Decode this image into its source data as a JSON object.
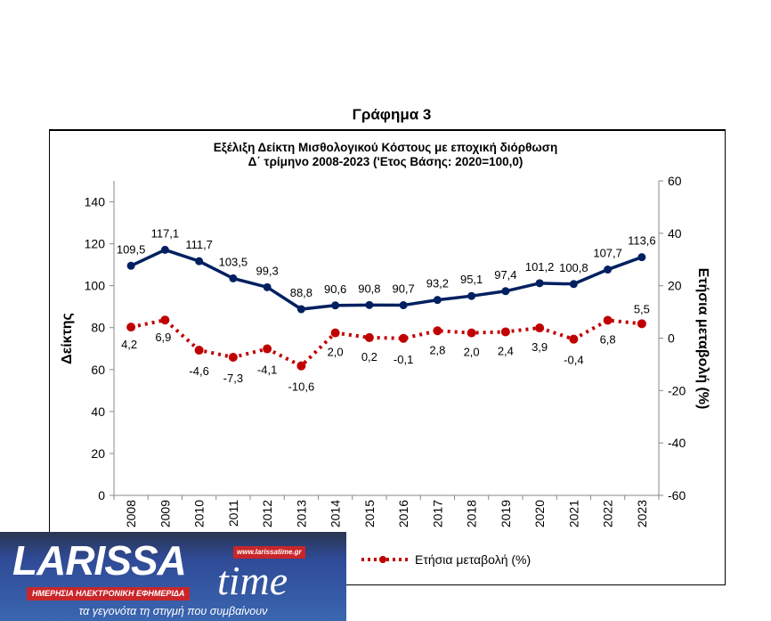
{
  "figure_title": "Γράφημα 3",
  "chart_data": {
    "type": "line",
    "title_line1": "Εξέλιξη Δείκτη Μισθολογικού Κόστους με εποχική διόρθωση",
    "title_line2": "Δ΄ τρίμηνο 2008-2023 ('Ετος Βάσης: 2020=100,0)",
    "categories": [
      "2008",
      "2009",
      "2010",
      "2011",
      "2012",
      "2013",
      "2014",
      "2015",
      "2016",
      "2017",
      "2018",
      "2019",
      "2020",
      "2021",
      "2022",
      "2023"
    ],
    "ylabel": "Δείκτης",
    "y2label": "Ετήσια μεταβολή (%)",
    "ylim": [
      0,
      150
    ],
    "yticks": [
      0,
      20,
      40,
      60,
      80,
      100,
      120,
      140
    ],
    "y2lim": [
      -60,
      60
    ],
    "y2ticks": [
      -60,
      -40,
      -20,
      0,
      20,
      40,
      60
    ],
    "grid": false,
    "legend_position": "bottom",
    "series": [
      {
        "axis": "left",
        "color": "#002060",
        "style": "solid",
        "labels": [
          "109,5",
          "117,1",
          "111,7",
          "103,5",
          "99,3",
          "88,8",
          "90,6",
          "90,8",
          "90,7",
          "93,2",
          "95,1",
          "97,4",
          "101,2",
          "100,8",
          "107,7",
          "113,6"
        ],
        "values": [
          109.5,
          117.1,
          111.7,
          103.5,
          99.3,
          88.8,
          90.6,
          90.8,
          90.7,
          93.2,
          95.1,
          97.4,
          101.2,
          100.8,
          107.7,
          113.6
        ]
      },
      {
        "name": "Ετήσια μεταβολή (%)",
        "axis": "right",
        "color": "#c00000",
        "style": "dotted",
        "labels": [
          "4,2",
          "6,9",
          "-4,6",
          "-7,3",
          "-4,1",
          "-10,6",
          "2,0",
          "0,2",
          "-0,1",
          "2,8",
          "2,0",
          "2,4",
          "3,9",
          "-0,4",
          "6,8",
          "5,5"
        ],
        "values": [
          4.2,
          6.9,
          -4.6,
          -7.3,
          -4.1,
          -10.6,
          2.0,
          0.2,
          -0.1,
          2.8,
          2.0,
          2.4,
          3.9,
          -0.4,
          6.8,
          5.5
        ]
      }
    ]
  },
  "logo": {
    "name": "LARISSA",
    "time": "time",
    "url": "www.larissatime.gr",
    "tagline": "ΗΜΕΡΗΣΙΑ ΗΛΕΚΤΡΟΝΙΚΗ ΕΦΗΜΕΡΙΔΑ",
    "slogan": "τα γεγονότα τη στιγμή που συμβαίνουν"
  }
}
